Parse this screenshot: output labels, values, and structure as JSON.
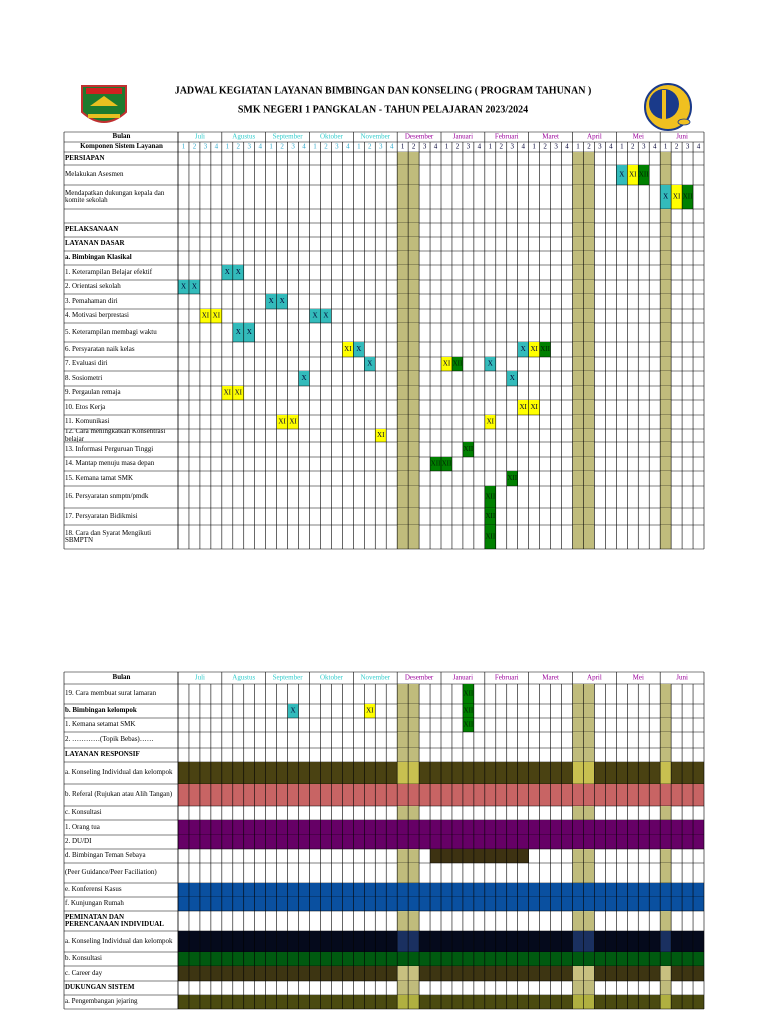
{
  "header": {
    "title": "JADWAL KEGIATAN LAYANAN BIMBINGAN DAN KONSELING ( PROGRAM TAHUNAN )",
    "subtitle": "SMK NEGERI 1 PANGKALAN - TAHUN PELAJARAN 2023/2024"
  },
  "months": [
    {
      "name": "Juli",
      "color": "#33cccc"
    },
    {
      "name": "Agustus",
      "color": "#33cccc"
    },
    {
      "name": "September",
      "color": "#33cccc"
    },
    {
      "name": "Oktober",
      "color": "#33cccc"
    },
    {
      "name": "November",
      "color": "#33cccc"
    },
    {
      "name": "Desember",
      "color": "#990099"
    },
    {
      "name": "Januari",
      "color": "#990099"
    },
    {
      "name": "Februari",
      "color": "#990099"
    },
    {
      "name": "Maret",
      "color": "#990099"
    },
    {
      "name": "April",
      "color": "#990099"
    },
    {
      "name": "Mei",
      "color": "#990099"
    },
    {
      "name": "Juni",
      "color": "#990099"
    }
  ],
  "weeks": [
    "1",
    "2",
    "3",
    "4"
  ],
  "shaded_weeks": [
    20,
    21,
    36,
    37,
    44
  ],
  "shade_color": "#c0bc7c",
  "mark_colors": {
    "X": "#33bbbb",
    "XI": "#ffff00",
    "XII": "#008000"
  },
  "table1": {
    "corner_top": "Bulan",
    "corner_bottom": "Komponen Sistem Layanan",
    "rows": [
      {
        "label": "PERSIAPAN",
        "bold": true,
        "marks": []
      },
      {
        "label": "Melakukan Asesmen",
        "marks": [
          {
            "week": 40,
            "text": "X"
          },
          {
            "week": 41,
            "text": "XI"
          },
          {
            "week": 42,
            "text": "XII"
          }
        ]
      },
      {
        "label": "Mendapatkan dukungan kepala dan komite sekolah",
        "marks": [
          {
            "week": 44,
            "text": "X"
          },
          {
            "week": 45,
            "text": "XI"
          },
          {
            "week": 46,
            "text": "XII"
          }
        ]
      },
      {
        "label": null,
        "marks": []
      },
      {
        "label": "PELAKSANAAN",
        "bold": true,
        "marks": []
      },
      {
        "label": "LAYANAN DASAR",
        "bold": true,
        "marks": []
      },
      {
        "label": "a. Bimbingan Klasikal",
        "bold": true,
        "marks": []
      },
      {
        "label": "1. Keterampilan Belajar efektif",
        "marks": [
          {
            "week": 4,
            "text": "X"
          },
          {
            "week": 5,
            "text": "X"
          }
        ]
      },
      {
        "label": "2. Orientasi sekolah",
        "marks": [
          {
            "week": 0,
            "text": "X"
          },
          {
            "week": 1,
            "text": "X"
          }
        ]
      },
      {
        "label": "3. Pemahaman diri",
        "marks": [
          {
            "week": 8,
            "text": "X"
          },
          {
            "week": 9,
            "text": "X"
          }
        ]
      },
      {
        "label": "4. Motivasi berprestasi",
        "marks": [
          {
            "week": 2,
            "text": "XI"
          },
          {
            "week": 3,
            "text": "XI"
          },
          {
            "week": 12,
            "text": "X"
          },
          {
            "week": 13,
            "text": "X"
          }
        ]
      },
      {
        "label": "5. Keterampilan membagi waktu",
        "marks": [
          {
            "week": 5,
            "text": "X"
          },
          {
            "week": 6,
            "text": "X"
          }
        ]
      },
      {
        "label": "6. Persyaratan  naik kelas",
        "marks": [
          {
            "week": 15,
            "text": "XI"
          },
          {
            "week": 16,
            "text": "X"
          },
          {
            "week": 31,
            "text": "X"
          },
          {
            "week": 32,
            "text": "XI"
          },
          {
            "week": 33,
            "text": "XII"
          }
        ]
      },
      {
        "label": "7. Evaluasi diri",
        "marks": [
          {
            "week": 17,
            "text": "X"
          },
          {
            "week": 24,
            "text": "XI"
          },
          {
            "week": 25,
            "text": "XII"
          },
          {
            "week": 28,
            "text": "X"
          }
        ]
      },
      {
        "label": "8. Sosiometri",
        "marks": [
          {
            "week": 11,
            "text": "X"
          },
          {
            "week": 30,
            "text": "X"
          }
        ]
      },
      {
        "label": "9. Pergaulan remaja",
        "marks": [
          {
            "week": 4,
            "text": "XI"
          },
          {
            "week": 5,
            "text": "XI"
          }
        ]
      },
      {
        "label": "10. Etos Kerja",
        "marks": [
          {
            "week": 31,
            "text": "XI"
          },
          {
            "week": 32,
            "text": "XI"
          }
        ]
      },
      {
        "label": "11. Komunikasi",
        "marks": [
          {
            "week": 9,
            "text": "XI"
          },
          {
            "week": 10,
            "text": "XI"
          },
          {
            "week": 28,
            "text": "XI"
          }
        ]
      },
      {
        "label": "12. Cara meningkatkan Konsentrasi belajar",
        "marks": [
          {
            "week": 18,
            "text": "XI"
          }
        ]
      },
      {
        "label": "13. Informasi  Perguruan Tinggi",
        "marks": [
          {
            "week": 26,
            "text": "XII"
          }
        ]
      },
      {
        "label": "14. Mantap menuju masa depan",
        "marks": [
          {
            "week": 23,
            "text": "XII"
          },
          {
            "week": 24,
            "text": "XII"
          }
        ]
      },
      {
        "label": "15. Kemana tamat SMK",
        "marks": [
          {
            "week": 30,
            "text": "XII"
          }
        ]
      },
      {
        "label": "16. Persyaratan snmptn/pmdk",
        "marks": [
          {
            "week": 28,
            "text": "XII"
          }
        ]
      },
      {
        "label": "17. Persyaratan Bidikmisi",
        "marks": [
          {
            "week": 28,
            "text": "XII"
          }
        ]
      },
      {
        "label": "18. Cara dan Syarat Mengikuti SBMPTN",
        "marks": [
          {
            "week": 28,
            "text": "XII"
          }
        ]
      }
    ]
  },
  "table2": {
    "corner_top": "Bulan",
    "rows": [
      {
        "label": "19. Cara membuat surat lamaran",
        "marks": [
          {
            "week": 26,
            "text": "XII"
          }
        ]
      },
      {
        "label": "b. Bimbingan kelompok",
        "bold": true,
        "marks": [
          {
            "week": 10,
            "text": "X"
          },
          {
            "week": 17,
            "text": "XI"
          },
          {
            "week": 26,
            "text": "XII"
          }
        ]
      },
      {
        "label": "1. Kemana setamat SMK",
        "marks": [
          {
            "week": 26,
            "text": "XII"
          }
        ]
      },
      {
        "label": "2. …………(Topik Bebas)……",
        "marks": []
      },
      {
        "label": "LAYANAN RESPONSIF",
        "bold": true,
        "marks": []
      },
      {
        "label": "a. Konseling Individual dan kelompok",
        "marks": [],
        "fill": "#4a4212",
        "fill_shaded": "#c8c050"
      },
      {
        "label": "b. Referal (Rujukan atau Alih Tangan)",
        "marks": [],
        "fill": "#c86464"
      },
      {
        "label": "c. Konsultasi",
        "marks": []
      },
      {
        "label": "1. Orang tua",
        "marks": [],
        "fill": "#660066"
      },
      {
        "label": "2. DU/DI",
        "marks": [],
        "fill": "#660066"
      },
      {
        "label": "d. Bimbingan Teman Sebaya",
        "marks": [],
        "fill": "#3d3212",
        "fill_weeks": [
          23,
          31
        ]
      },
      {
        "label": "(Peer Guidance/Peer Faciliation)",
        "marks": []
      },
      {
        "label": "e. Konferensi Kasus",
        "marks": [],
        "fill": "#0a50a0"
      },
      {
        "label": "f. Kunjungan Rumah",
        "marks": [],
        "fill": "#0a50a0"
      },
      {
        "label": "PEMINATAN DAN PERENCANAAN INDIVIDUAL",
        "bold": true,
        "marks": []
      },
      {
        "label": "a. Konseling Individual dan kelompok",
        "marks": [],
        "fill": "#050a1c",
        "fill_shaded": "#1a3060"
      },
      {
        "label": "b. Konsultasi",
        "marks": [],
        "fill": "#005a10"
      },
      {
        "label": "c. Career day",
        "marks": [],
        "fill": "#3d3512",
        "fill_shaded": "#c8c080"
      },
      {
        "label": "DUKUNGAN SISTEM",
        "bold": true,
        "marks": []
      },
      {
        "label": "a. Pengembangan jejaring",
        "marks": [],
        "fill": "#4a4a10",
        "fill_shaded": "#b0b040"
      }
    ]
  }
}
